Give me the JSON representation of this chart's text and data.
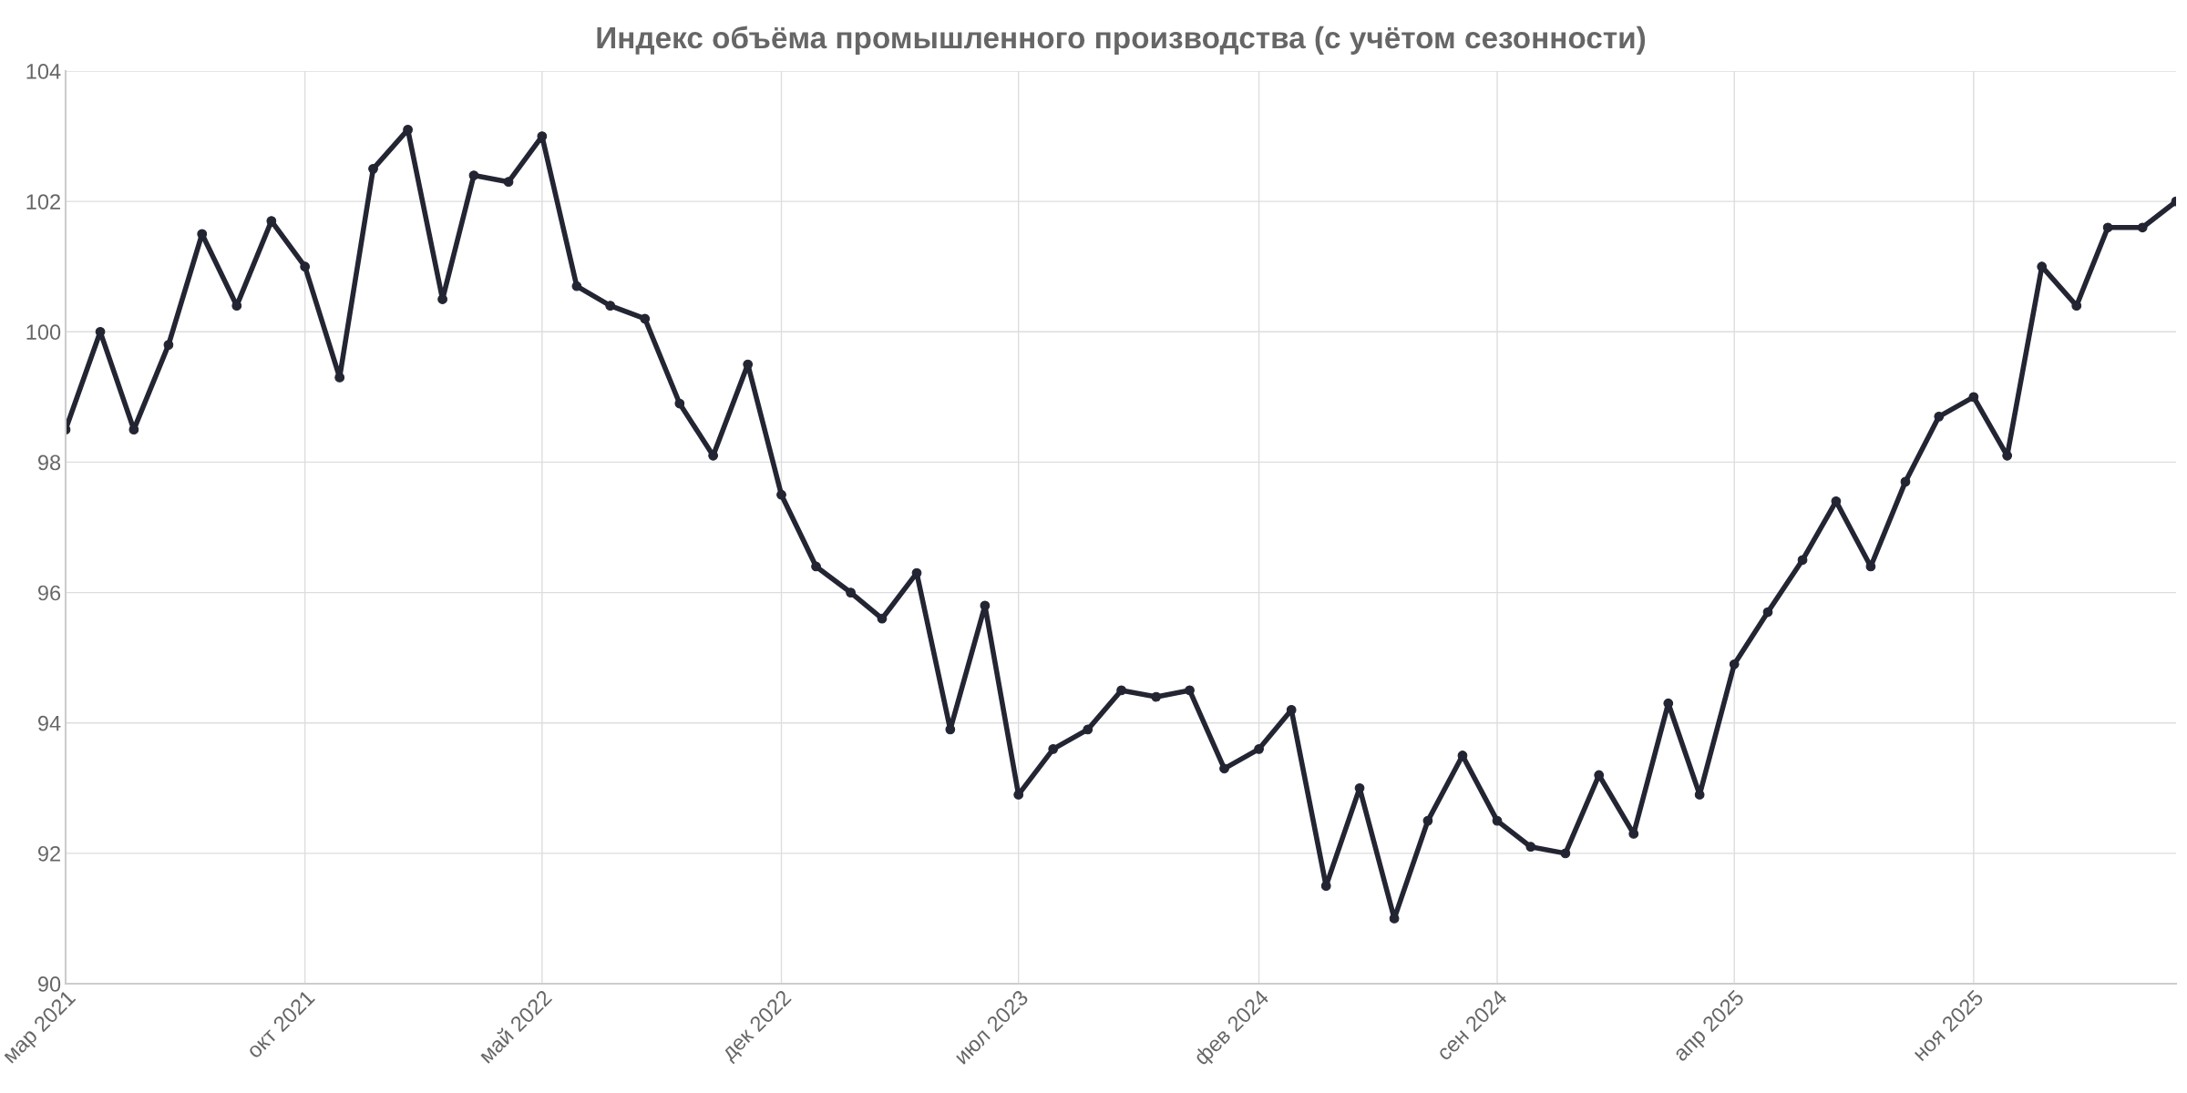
{
  "chart_data": {
    "type": "line",
    "title": "Индекс объёма промышленного производства (с учётом сезонности)",
    "x": [
      "2021-03",
      "2021-04",
      "2021-05",
      "2021-06",
      "2021-07",
      "2021-08",
      "2021-09",
      "2021-10",
      "2021-11",
      "2021-12",
      "2022-01",
      "2022-02",
      "2022-03",
      "2022-04",
      "2022-05",
      "2022-06",
      "2022-07",
      "2022-08",
      "2022-09",
      "2022-10",
      "2022-11",
      "2022-12",
      "2023-01",
      "2023-02",
      "2023-03",
      "2023-04",
      "2023-05",
      "2023-06",
      "2023-07",
      "2023-08",
      "2023-09",
      "2023-10",
      "2023-11",
      "2023-12",
      "2024-01",
      "2024-02",
      "2024-03",
      "2024-04",
      "2024-05",
      "2024-06",
      "2024-07",
      "2024-08",
      "2024-09",
      "2024-10",
      "2024-11",
      "2024-12",
      "2025-01",
      "2025-02",
      "2025-03",
      "2025-04",
      "2025-05",
      "2025-06",
      "2025-07",
      "2025-08",
      "2025-09",
      "2025-10",
      "2025-11",
      "2025-12",
      "2026-01",
      "2026-02",
      "2026-03",
      "2026-04",
      "2026-05"
    ],
    "series": [
      {
        "color": "#232533",
        "values": [
          98.5,
          100.0,
          98.5,
          99.8,
          101.5,
          100.4,
          101.7,
          101.0,
          99.3,
          102.5,
          103.1,
          100.5,
          102.4,
          102.3,
          103.0,
          100.7,
          100.4,
          100.2,
          98.9,
          98.1,
          99.5,
          97.5,
          96.4,
          96.0,
          95.6,
          96.3,
          93.9,
          95.8,
          92.9,
          93.6,
          93.9,
          94.5,
          94.4,
          94.5,
          93.3,
          93.6,
          94.2,
          91.5,
          93.0,
          91.0,
          92.5,
          93.5,
          92.5,
          92.1,
          92.0,
          93.2,
          92.3,
          94.3,
          92.9,
          94.9,
          95.7,
          96.5,
          97.4,
          96.4,
          97.7,
          98.7,
          99.0,
          98.1,
          101.0,
          100.4,
          101.6,
          101.6,
          102.0
        ]
      }
    ],
    "xlim": [
      "2021-03",
      "2026-05"
    ],
    "xticks": [
      {
        "value": "2021-03",
        "label": "мар 2021"
      },
      {
        "value": "2021-10",
        "label": "окт 2021"
      },
      {
        "value": "2022-05",
        "label": "май 2022"
      },
      {
        "value": "2022-12",
        "label": "дек 2022"
      },
      {
        "value": "2023-07",
        "label": "июл 2023"
      },
      {
        "value": "2024-02",
        "label": "фев 2024"
      },
      {
        "value": "2024-09",
        "label": "сен 2024"
      },
      {
        "value": "2025-04",
        "label": "апр 2025"
      },
      {
        "value": "2025-11",
        "label": "ноя 2025"
      }
    ],
    "ylim": [
      90,
      104
    ],
    "yticks": [
      90,
      92,
      94,
      96,
      98,
      100,
      102,
      104
    ],
    "grid": true,
    "marker": "circle",
    "line_style": "solid"
  }
}
